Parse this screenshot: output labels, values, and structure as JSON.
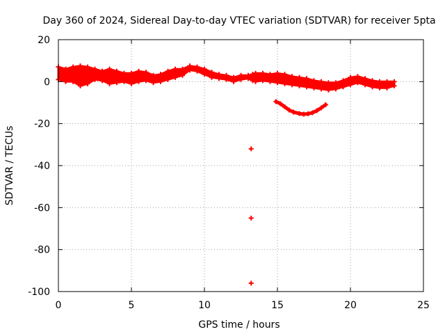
{
  "chart_data": {
    "type": "scatter",
    "title": "Day 360 of 2024, Sidereal Day-to-day VTEC variation (SDTVAR) for receiver 5pta",
    "xlabel": "GPS time / hours",
    "ylabel": "SDTVAR / TECUs",
    "xlim": [
      0,
      25
    ],
    "ylim": [
      -100,
      20
    ],
    "xticks": [
      0,
      5,
      10,
      15,
      20,
      25
    ],
    "yticks": [
      -100,
      -80,
      -60,
      -40,
      -20,
      0,
      20
    ],
    "grid": true,
    "series_color": "#ff0000",
    "series": [
      {
        "name": "main-trace",
        "band_upper": [
          [
            0,
            7
          ],
          [
            0.5,
            6
          ],
          [
            1,
            7
          ],
          [
            1.5,
            7.5
          ],
          [
            2,
            7
          ],
          [
            2.5,
            6
          ],
          [
            3,
            5
          ],
          [
            3.5,
            6
          ],
          [
            4,
            5
          ],
          [
            4.5,
            4
          ],
          [
            5,
            4
          ],
          [
            5.5,
            5
          ],
          [
            6,
            4.5
          ],
          [
            6.5,
            3
          ],
          [
            7,
            3.5
          ],
          [
            7.5,
            5
          ],
          [
            8,
            6
          ],
          [
            8.5,
            6
          ],
          [
            9,
            7.5
          ],
          [
            9.5,
            7
          ],
          [
            10,
            6
          ],
          [
            10.5,
            4.5
          ],
          [
            11,
            3.5
          ],
          [
            11.5,
            3
          ],
          [
            12,
            2
          ],
          [
            12.5,
            3
          ],
          [
            13,
            3
          ],
          [
            13.3,
            3.5
          ],
          [
            13.5,
            4
          ],
          [
            14,
            4
          ],
          [
            14.5,
            3.5
          ],
          [
            15,
            4
          ],
          [
            15.5,
            3.5
          ],
          [
            16,
            2.5
          ],
          [
            16.5,
            2
          ],
          [
            17,
            1.5
          ],
          [
            17.5,
            0.5
          ],
          [
            18,
            0
          ],
          [
            18.5,
            -0.5
          ],
          [
            19,
            -0.5
          ],
          [
            19.5,
            0.5
          ],
          [
            20,
            2
          ],
          [
            20.5,
            2.5
          ],
          [
            21,
            1.5
          ],
          [
            21.5,
            0.5
          ],
          [
            22,
            0
          ],
          [
            22.5,
            0
          ],
          [
            23,
            0
          ]
        ],
        "band_lower": [
          [
            0,
            1
          ],
          [
            0.5,
            0
          ],
          [
            1,
            0
          ],
          [
            1.5,
            -2
          ],
          [
            2,
            -1
          ],
          [
            2.5,
            1
          ],
          [
            3,
            0.5
          ],
          [
            3.5,
            -1
          ],
          [
            4,
            -0.5
          ],
          [
            4.5,
            0
          ],
          [
            5,
            -1
          ],
          [
            5.5,
            0
          ],
          [
            6,
            0.5
          ],
          [
            6.5,
            -0.5
          ],
          [
            7,
            0
          ],
          [
            7.5,
            1
          ],
          [
            8,
            2
          ],
          [
            8.5,
            3
          ],
          [
            9,
            5.5
          ],
          [
            9.5,
            5
          ],
          [
            10,
            3.5
          ],
          [
            10.5,
            2
          ],
          [
            11,
            1.5
          ],
          [
            11.5,
            1
          ],
          [
            12,
            0
          ],
          [
            12.5,
            1
          ],
          [
            13,
            1.5
          ],
          [
            13.3,
            0.5
          ],
          [
            13.5,
            0
          ],
          [
            14,
            0.5
          ],
          [
            14.5,
            0
          ],
          [
            15,
            -0.5
          ],
          [
            15.5,
            -1
          ],
          [
            16,
            -1.5
          ],
          [
            16.5,
            -2
          ],
          [
            17,
            -2.5
          ],
          [
            17.5,
            -3
          ],
          [
            18,
            -3.5
          ],
          [
            18.5,
            -4
          ],
          [
            19,
            -3.5
          ],
          [
            19.5,
            -2.5
          ],
          [
            20,
            -1.5
          ],
          [
            20.5,
            -0.5
          ],
          [
            21,
            -1.5
          ],
          [
            21.5,
            -2.5
          ],
          [
            22,
            -3
          ],
          [
            22.5,
            -3
          ],
          [
            23,
            -2
          ]
        ]
      },
      {
        "name": "secondary-arc",
        "points": [
          [
            14.9,
            -9.5
          ],
          [
            15.2,
            -10.5
          ],
          [
            15.5,
            -12
          ],
          [
            15.8,
            -13.5
          ],
          [
            16.1,
            -14.5
          ],
          [
            16.5,
            -15.2
          ],
          [
            16.8,
            -15.5
          ],
          [
            17.1,
            -15.3
          ],
          [
            17.4,
            -14.8
          ],
          [
            17.7,
            -13.8
          ],
          [
            18,
            -12.5
          ],
          [
            18.3,
            -11
          ]
        ]
      },
      {
        "name": "outliers",
        "points": [
          [
            13.2,
            -32
          ],
          [
            13.2,
            -65
          ],
          [
            13.2,
            -96
          ]
        ]
      }
    ]
  }
}
